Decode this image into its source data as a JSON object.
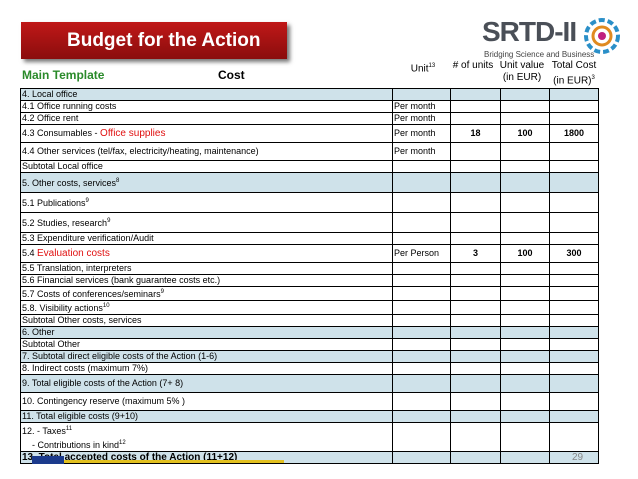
{
  "title": "Budget for the Action",
  "logo": {
    "name": "SRTD-II",
    "tagline": "Bridging Science and Business"
  },
  "header": {
    "main_template": "Main Template",
    "cost": "Cost",
    "unit": "Unit",
    "unit_sup": "13",
    "num_units": "# of units",
    "unit_value": "Unit value (in EUR)",
    "total_cost": "Total Cost (in EUR)",
    "total_sup": "3"
  },
  "rows": [
    {
      "label": "4. Local office",
      "unit": "",
      "n": "",
      "v": "",
      "t": "",
      "blue": true
    },
    {
      "label": "4.1 Office running costs",
      "unit": "Per month",
      "n": "",
      "v": "",
      "t": "",
      "blue": false
    },
    {
      "label": "4.2 Office rent",
      "unit": "Per month",
      "n": "",
      "v": "",
      "t": "",
      "blue": false
    },
    {
      "label": "4.3 Consumables - ",
      "red": "Office supplies",
      "unit": "Per month",
      "n": "18",
      "v": "100",
      "t": "1800",
      "blue": false,
      "tall": true
    },
    {
      "label": "4.4 Other services (tel/fax, electricity/heating, maintenance)",
      "unit": "Per month",
      "n": "",
      "v": "",
      "t": "",
      "blue": false,
      "tall": true
    },
    {
      "label": "Subtotal Local office",
      "unit": "",
      "n": "",
      "v": "",
      "t": "",
      "blue": false
    },
    {
      "label": "5. Other costs, services",
      "sup": "8",
      "unit": "",
      "n": "",
      "v": "",
      "t": "",
      "blue": true,
      "tall": true
    },
    {
      "label": "5.1 Publications",
      "sup": "9",
      "unit": "",
      "n": "",
      "v": "",
      "t": "",
      "blue": false,
      "tall": true
    },
    {
      "label": "5.2 Studies, research",
      "sup": "9",
      "unit": "",
      "n": "",
      "v": "",
      "t": "",
      "blue": false,
      "tall": true
    },
    {
      "label": "5.3 Expenditure verification/Audit",
      "unit": "",
      "n": "",
      "v": "",
      "t": "",
      "blue": false
    },
    {
      "label": "5.4 ",
      "red": "Evaluation costs",
      "unit": "Per Person",
      "n": "3",
      "v": "100",
      "t": "300",
      "blue": false,
      "tall": true
    },
    {
      "label": "5.5 Translation, interpreters",
      "unit": "",
      "n": "",
      "v": "",
      "t": "",
      "blue": false
    },
    {
      "label": "5.6 Financial services (bank guarantee costs etc.)",
      "unit": "",
      "n": "",
      "v": "",
      "t": "",
      "blue": false
    },
    {
      "label": "5.7 Costs of conferences/seminars",
      "sup": "9",
      "unit": "",
      "n": "",
      "v": "",
      "t": "",
      "blue": false
    },
    {
      "label": "5.8. Visibility actions",
      "sup": "10",
      "unit": "",
      "n": "",
      "v": "",
      "t": "",
      "blue": false
    },
    {
      "label": "Subtotal Other costs, services",
      "unit": "",
      "n": "",
      "v": "",
      "t": "",
      "blue": false
    },
    {
      "label": "6. Other",
      "unit": "",
      "n": "",
      "v": "",
      "t": "",
      "blue": true
    },
    {
      "label": "Subtotal Other",
      "unit": "",
      "n": "",
      "v": "",
      "t": "",
      "blue": false
    },
    {
      "label": "7.  Subtotal direct eligible costs of the Action (1-6)",
      "unit": "",
      "n": "",
      "v": "",
      "t": "",
      "blue": true
    },
    {
      "label": "8. Indirect costs (maximum 7%)",
      "unit": "",
      "n": "",
      "v": "",
      "t": "",
      "blue": false
    },
    {
      "label": "9. Total eligible costs of the Action (7+ 8)",
      "unit": "",
      "n": "",
      "v": "",
      "t": "",
      "blue": true,
      "tall": true
    },
    {
      "label": "10. Contingency reserve (maximum 5% )",
      "unit": "",
      "n": "",
      "v": "",
      "t": "",
      "blue": false,
      "tall": true
    },
    {
      "label": "11. Total eligible costs (9+10)",
      "unit": "",
      "n": "",
      "v": "",
      "t": "",
      "blue": true
    },
    {
      "label": "12. - Taxes",
      "sup": "11",
      "line2": "    - Contributions in kind",
      "sup2": "12",
      "unit": "",
      "n": "",
      "v": "",
      "t": "",
      "blue": false,
      "double": true
    },
    {
      "label": "13. Total accepted costs of the Action (11+12)",
      "unit": "",
      "n": "",
      "v": "",
      "t": "",
      "blue": true,
      "bold": true
    }
  ],
  "page_number": "29",
  "colors": {
    "title_bg": "#a51212",
    "row_blue": "#cfe2ea",
    "accent_red": "#e01010",
    "green": "#2a8a2a"
  }
}
